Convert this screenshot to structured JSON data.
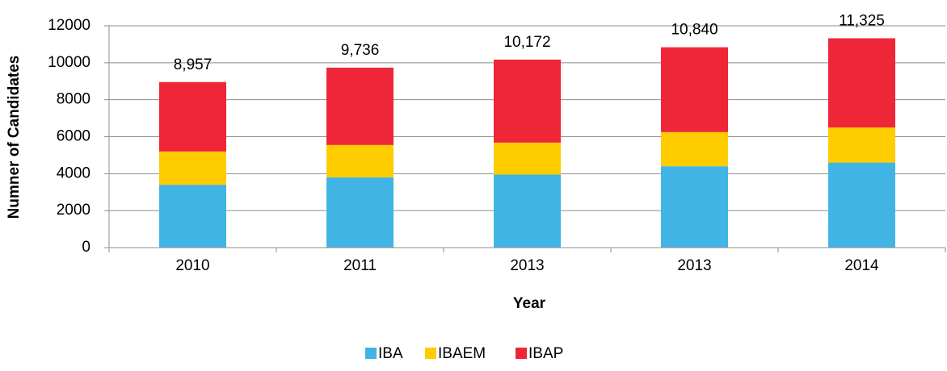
{
  "chart_data": {
    "type": "stacked_bar",
    "x_label": "Year",
    "y_label": "Numner of Candidates",
    "categories": [
      "2010",
      "2011",
      "2013",
      "2013",
      "2014"
    ],
    "series": [
      {
        "name": "IBA",
        "color": "#41b4e6",
        "values": [
          3400,
          3800,
          3950,
          4400,
          4600
        ]
      },
      {
        "name": "IBAEM",
        "color": "#ffcc00",
        "values": [
          1800,
          1750,
          1730,
          1850,
          1900
        ]
      },
      {
        "name": "IBAP",
        "color": "#ef2637",
        "values": [
          3757,
          4186,
          4492,
          4590,
          4825
        ]
      }
    ],
    "totals": [
      8957,
      9736,
      10172,
      10840,
      11325
    ],
    "total_labels": [
      "8,957",
      "9,736",
      "10,172",
      "10,840",
      "11,325"
    ],
    "ylim": [
      0,
      12000
    ],
    "yticks": [
      0,
      2000,
      4000,
      6000,
      8000,
      10000,
      12000
    ],
    "grid": true,
    "legend": "bottom"
  }
}
